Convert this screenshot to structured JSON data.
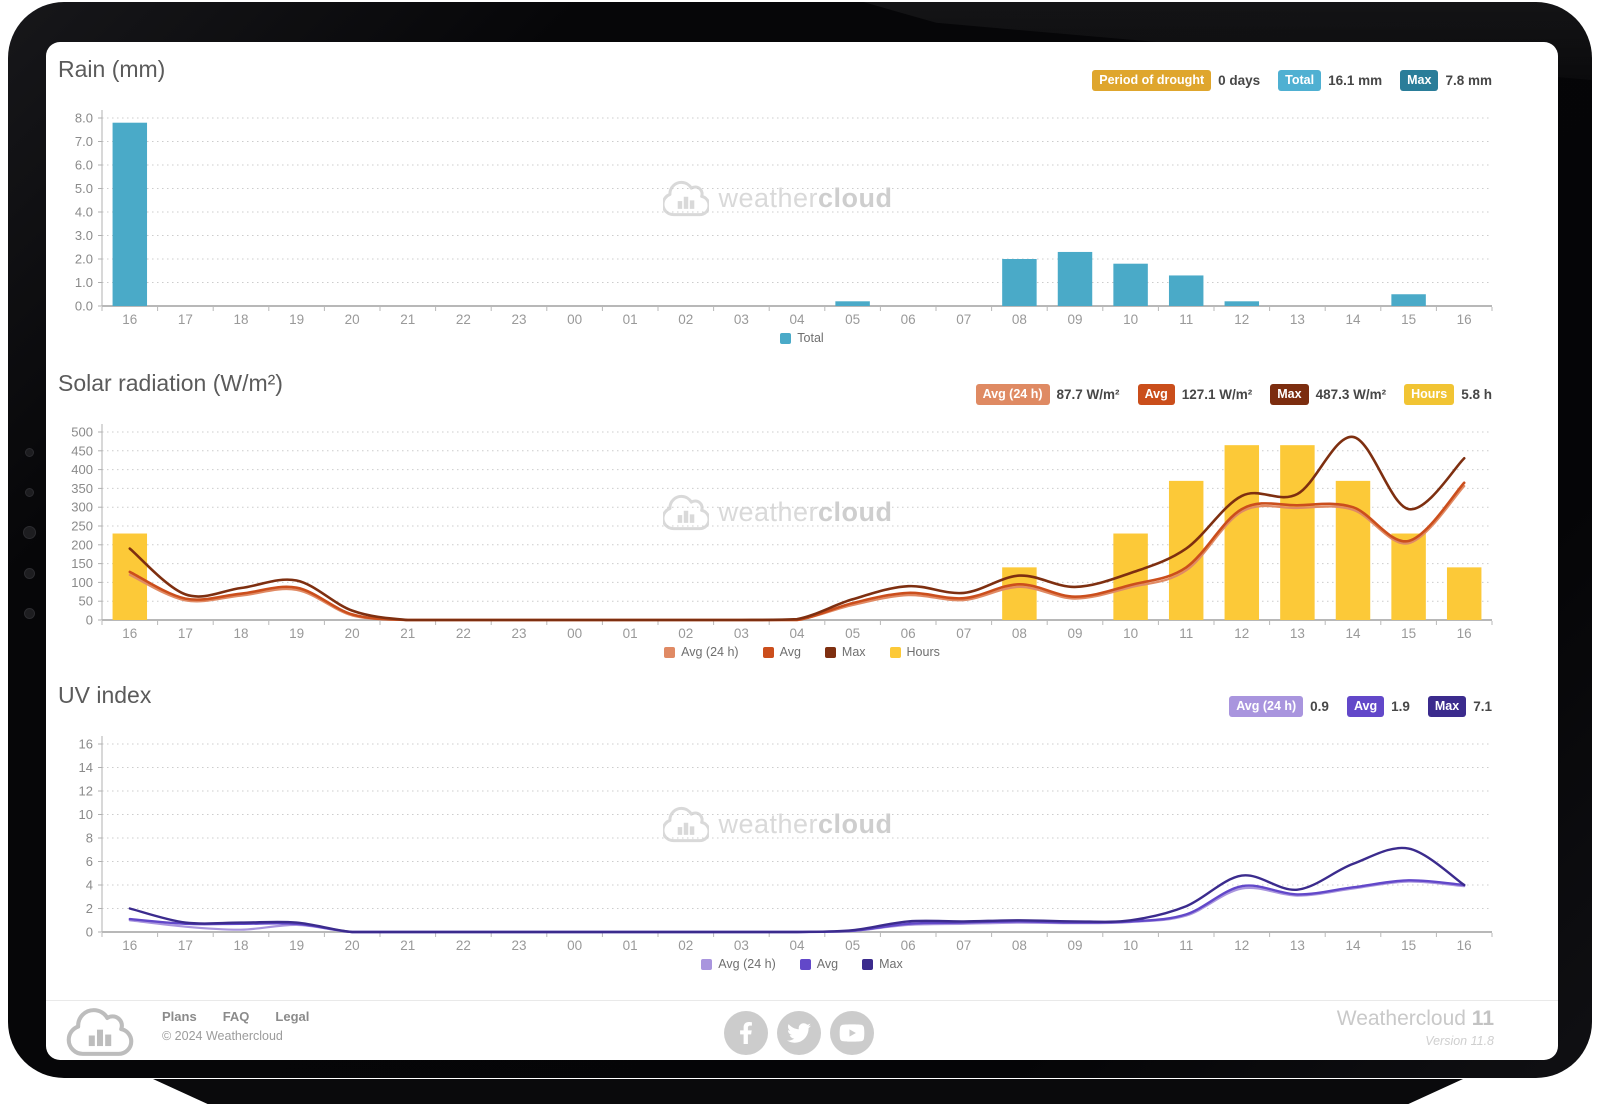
{
  "watermark": {
    "weather": "weather",
    "cloud": "cloud"
  },
  "sections": [
    {
      "id": "rain",
      "title": "Rain (mm)",
      "badges": [
        {
          "label": "Period of drought",
          "value": "0 days",
          "bg": "#dfa62d"
        },
        {
          "label": "Total",
          "value": "16.1 mm",
          "bg": "#4fb0d2"
        },
        {
          "label": "Max",
          "value": "7.8 mm",
          "bg": "#2a7d99"
        }
      ]
    },
    {
      "id": "solar",
      "title": "Solar radiation (W/m²)",
      "badges": [
        {
          "label": "Avg (24 h)",
          "value": "87.7 W/m²",
          "bg": "#df8a63"
        },
        {
          "label": "Avg",
          "value": "127.1 W/m²",
          "bg": "#ca4e1b"
        },
        {
          "label": "Max",
          "value": "487.3 W/m²",
          "bg": "#7c2d0f"
        },
        {
          "label": "Hours",
          "value": "5.8 h",
          "bg": "#f1c433"
        }
      ]
    },
    {
      "id": "uv",
      "title": "UV index",
      "badges": [
        {
          "label": "Avg (24 h)",
          "value": "0.9",
          "bg": "#a995de"
        },
        {
          "label": "Avg",
          "value": "1.9",
          "bg": "#6248c9"
        },
        {
          "label": "Max",
          "value": "7.1",
          "bg": "#3b2b8d"
        }
      ]
    }
  ],
  "chart_data": [
    {
      "type": "bar",
      "title": "Rain (mm)",
      "categories": [
        "16",
        "17",
        "18",
        "19",
        "20",
        "21",
        "22",
        "23",
        "00",
        "01",
        "02",
        "03",
        "04",
        "05",
        "06",
        "07",
        "08",
        "09",
        "10",
        "11",
        "12",
        "13",
        "14",
        "15",
        "16"
      ],
      "ylim": [
        0,
        8
      ],
      "ytick": 1,
      "ydecimals": 1,
      "grid": true,
      "legend_position": "bottom-center",
      "series": [
        {
          "name": "Total",
          "type": "bar",
          "color": "#4aaac8",
          "values": [
            7.8,
            0,
            0,
            0,
            0,
            0,
            0,
            0,
            0,
            0,
            0,
            0,
            0,
            0.2,
            0,
            0,
            2,
            2.3,
            1.8,
            1.3,
            0.2,
            0,
            0,
            0.5,
            0
          ]
        }
      ],
      "legend": [
        {
          "label": "Total",
          "color": "#4aaac8"
        }
      ]
    },
    {
      "type": "bar+line",
      "title": "Solar radiation (W/m²)",
      "categories": [
        "16",
        "17",
        "18",
        "19",
        "20",
        "21",
        "22",
        "23",
        "00",
        "01",
        "02",
        "03",
        "04",
        "05",
        "06",
        "07",
        "08",
        "09",
        "10",
        "11",
        "12",
        "13",
        "14",
        "15",
        "16"
      ],
      "ylim": [
        0,
        500
      ],
      "ytick": 50,
      "ydecimals": 0,
      "grid": true,
      "legend_position": "bottom-center",
      "series": [
        {
          "name": "Hours",
          "type": "bar",
          "color": "#fcc938",
          "values": [
            230,
            0,
            0,
            0,
            0,
            0,
            0,
            0,
            0,
            0,
            0,
            0,
            0,
            0,
            0,
            0,
            140,
            0,
            230,
            370,
            465,
            465,
            370,
            230,
            140
          ]
        },
        {
          "name": "Avg (24 h)",
          "type": "line",
          "color": "#e08a64",
          "width": 2.2,
          "values": [
            120,
            52,
            65,
            80,
            12,
            0,
            0,
            0,
            0,
            0,
            0,
            0,
            0,
            40,
            66,
            53,
            88,
            57,
            87,
            132,
            288,
            298,
            293,
            204,
            356
          ]
        },
        {
          "name": "Avg",
          "type": "line",
          "color": "#cb4e1c",
          "width": 2.6,
          "values": [
            128,
            57,
            70,
            86,
            15,
            0,
            0,
            0,
            0,
            0,
            0,
            0,
            0,
            45,
            72,
            58,
            95,
            62,
            93,
            140,
            295,
            305,
            300,
            210,
            365
          ]
        },
        {
          "name": "Max",
          "type": "line",
          "color": "#7e2f10",
          "width": 2.6,
          "values": [
            190,
            68,
            85,
            105,
            25,
            0,
            0,
            0,
            0,
            0,
            0,
            0,
            2,
            55,
            90,
            72,
            118,
            88,
            125,
            190,
            330,
            335,
            487,
            295,
            430
          ]
        }
      ],
      "legend": [
        {
          "label": "Avg (24 h)",
          "color": "#e08a64"
        },
        {
          "label": "Avg",
          "color": "#cb4e1c"
        },
        {
          "label": "Max",
          "color": "#7e2f10"
        },
        {
          "label": "Hours",
          "color": "#fcc938"
        }
      ]
    },
    {
      "type": "line",
      "title": "UV index",
      "categories": [
        "16",
        "17",
        "18",
        "19",
        "20",
        "21",
        "22",
        "23",
        "00",
        "01",
        "02",
        "03",
        "04",
        "05",
        "06",
        "07",
        "08",
        "09",
        "10",
        "11",
        "12",
        "13",
        "14",
        "15",
        "16"
      ],
      "ylim": [
        0,
        16
      ],
      "ytick": 2,
      "ydecimals": 0,
      "grid": true,
      "legend_position": "bottom-center",
      "series": [
        {
          "name": "Avg (24 h)",
          "type": "line",
          "color": "#a995de",
          "width": 2.2,
          "values": [
            1.0,
            0.45,
            0.2,
            0.6,
            0,
            0,
            0,
            0,
            0,
            0,
            0,
            0,
            0,
            0.1,
            0.6,
            0.7,
            0.8,
            0.75,
            0.85,
            1.4,
            3.7,
            3.1,
            3.7,
            4.3,
            3.9
          ]
        },
        {
          "name": "Avg",
          "type": "line",
          "color": "#6248c9",
          "width": 2.4,
          "values": [
            1.1,
            0.7,
            0.7,
            0.7,
            0,
            0,
            0,
            0,
            0,
            0,
            0,
            0,
            0,
            0.1,
            0.7,
            0.8,
            0.9,
            0.8,
            0.9,
            1.5,
            3.9,
            3.2,
            3.8,
            4.4,
            4.0
          ]
        },
        {
          "name": "Max",
          "type": "line",
          "color": "#3b2b8d",
          "width": 2.4,
          "values": [
            2.0,
            0.8,
            0.8,
            0.8,
            0,
            0,
            0,
            0,
            0,
            0,
            0,
            0,
            0,
            0.15,
            0.9,
            0.9,
            1.0,
            0.9,
            1.0,
            2.2,
            4.8,
            3.6,
            5.8,
            7.1,
            4.0
          ]
        }
      ],
      "legend": [
        {
          "label": "Avg (24 h)",
          "color": "#a995de"
        },
        {
          "label": "Avg",
          "color": "#6248c9"
        },
        {
          "label": "Max",
          "color": "#3b2b8d"
        }
      ]
    }
  ],
  "footer": {
    "links": [
      "Plans",
      "FAQ",
      "Legal"
    ],
    "copyright": "© 2024 Weathercloud",
    "brand": "Weathercloud",
    "brand_number": "11",
    "version": "Version 11.8",
    "social": [
      "facebook",
      "twitter",
      "youtube"
    ]
  }
}
